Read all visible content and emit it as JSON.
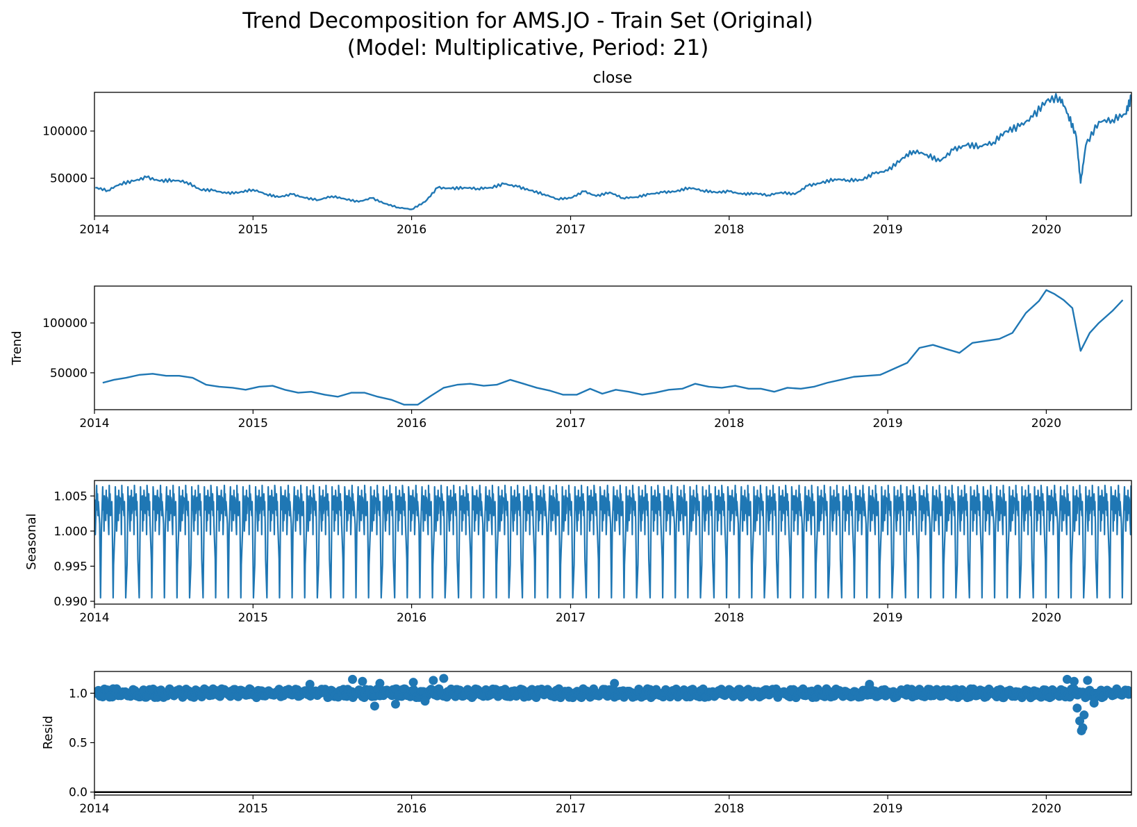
{
  "title_line1": "Trend Decomposition for AMS.JO - Train Set (Original)",
  "title_line2": "(Model: Multiplicative, Period: 21)",
  "colors": {
    "series": "#1f77b4",
    "axis": "#000000",
    "background": "#ffffff"
  },
  "chart_data": [
    {
      "type": "line",
      "panel": "observed",
      "title": "close",
      "ylabel": "",
      "xlim": [
        "2014-01-01",
        "2020-07-15"
      ],
      "ylim": [
        10000,
        141000
      ],
      "x_ticks": [
        "2014",
        "2015",
        "2016",
        "2017",
        "2018",
        "2019",
        "2020"
      ],
      "y_ticks": [
        {
          "value": 50000,
          "label": "50000"
        },
        {
          "value": 100000,
          "label": "100000"
        }
      ],
      "grid": false,
      "x": [
        "2014-01-03",
        "2014-02-01",
        "2014-03-01",
        "2014-04-01",
        "2014-05-01",
        "2014-06-01",
        "2014-07-01",
        "2014-08-01",
        "2014-09-01",
        "2014-10-01",
        "2014-11-01",
        "2014-12-01",
        "2015-01-01",
        "2015-02-01",
        "2015-03-01",
        "2015-04-01",
        "2015-05-01",
        "2015-06-01",
        "2015-07-01",
        "2015-08-01",
        "2015-09-01",
        "2015-10-01",
        "2015-11-01",
        "2015-12-01",
        "2016-01-01",
        "2016-02-01",
        "2016-03-01",
        "2016-04-01",
        "2016-05-01",
        "2016-06-01",
        "2016-07-01",
        "2016-08-01",
        "2016-09-01",
        "2016-10-01",
        "2016-11-01",
        "2016-12-01",
        "2017-01-01",
        "2017-02-01",
        "2017-03-01",
        "2017-04-01",
        "2017-05-01",
        "2017-06-01",
        "2017-07-01",
        "2017-08-01",
        "2017-09-01",
        "2017-10-01",
        "2017-11-01",
        "2017-12-01",
        "2018-01-01",
        "2018-02-01",
        "2018-03-01",
        "2018-04-01",
        "2018-05-01",
        "2018-06-01",
        "2018-07-01",
        "2018-08-01",
        "2018-09-01",
        "2018-10-01",
        "2018-11-01",
        "2018-12-01",
        "2019-01-01",
        "2019-02-01",
        "2019-03-01",
        "2019-04-01",
        "2019-05-01",
        "2019-06-01",
        "2019-07-01",
        "2019-08-01",
        "2019-09-01",
        "2019-10-01",
        "2019-11-01",
        "2019-12-01",
        "2020-01-01",
        "2020-02-01",
        "2020-02-20",
        "2020-03-10",
        "2020-03-20",
        "2020-04-01",
        "2020-05-01",
        "2020-06-01",
        "2020-07-01",
        "2020-07-15"
      ],
      "y": [
        40000,
        37000,
        44000,
        47000,
        51000,
        47000,
        48000,
        46000,
        38000,
        37000,
        34000,
        35000,
        38000,
        33000,
        30000,
        33000,
        29000,
        27000,
        31000,
        28000,
        25000,
        29000,
        23000,
        19000,
        17000,
        25000,
        40000,
        39000,
        40000,
        39000,
        40000,
        44000,
        41000,
        37000,
        33000,
        28000,
        29000,
        36000,
        31000,
        35000,
        29000,
        30000,
        33000,
        35000,
        36000,
        40000,
        37000,
        35000,
        36000,
        33000,
        34000,
        32000,
        35000,
        33000,
        42000,
        45000,
        49000,
        48000,
        48000,
        55000,
        58000,
        70000,
        79000,
        75000,
        68000,
        80000,
        85000,
        84000,
        88000,
        100000,
        105000,
        115000,
        132000,
        136000,
        118000,
        94000,
        45000,
        85000,
        110000,
        112000,
        118000,
        136000
      ]
    },
    {
      "type": "line",
      "panel": "trend",
      "title": "",
      "ylabel": "Trend",
      "xlim": [
        "2014-01-01",
        "2020-07-15"
      ],
      "ylim": [
        13000,
        137000
      ],
      "x_ticks": [
        "2014",
        "2015",
        "2016",
        "2017",
        "2018",
        "2019",
        "2020"
      ],
      "y_ticks": [
        {
          "value": 50000,
          "label": "50000"
        },
        {
          "value": 100000,
          "label": "100000"
        }
      ],
      "grid": false,
      "x": [
        "2014-01-20",
        "2014-02-15",
        "2014-03-15",
        "2014-04-15",
        "2014-05-15",
        "2014-06-15",
        "2014-07-15",
        "2014-08-15",
        "2014-09-15",
        "2014-10-15",
        "2014-11-15",
        "2014-12-15",
        "2015-01-15",
        "2015-02-15",
        "2015-03-15",
        "2015-04-15",
        "2015-05-15",
        "2015-06-15",
        "2015-07-15",
        "2015-08-15",
        "2015-09-15",
        "2015-10-15",
        "2015-11-15",
        "2015-12-15",
        "2016-01-15",
        "2016-02-15",
        "2016-03-15",
        "2016-04-15",
        "2016-05-15",
        "2016-06-15",
        "2016-07-15",
        "2016-08-15",
        "2016-09-15",
        "2016-10-15",
        "2016-11-15",
        "2016-12-15",
        "2017-01-15",
        "2017-02-15",
        "2017-03-15",
        "2017-04-15",
        "2017-05-15",
        "2017-06-15",
        "2017-07-15",
        "2017-08-15",
        "2017-09-15",
        "2017-10-15",
        "2017-11-15",
        "2017-12-15",
        "2018-01-15",
        "2018-02-15",
        "2018-03-15",
        "2018-04-15",
        "2018-05-15",
        "2018-06-15",
        "2018-07-15",
        "2018-08-15",
        "2018-09-15",
        "2018-10-15",
        "2018-11-15",
        "2018-12-15",
        "2019-01-15",
        "2019-02-15",
        "2019-03-15",
        "2019-04-15",
        "2019-05-15",
        "2019-06-15",
        "2019-07-15",
        "2019-08-15",
        "2019-09-15",
        "2019-10-15",
        "2019-11-15",
        "2019-12-15",
        "2020-01-01",
        "2020-01-20",
        "2020-02-10",
        "2020-03-01",
        "2020-03-20",
        "2020-04-10",
        "2020-05-01",
        "2020-06-01",
        "2020-06-25"
      ],
      "y": [
        40000,
        43000,
        45000,
        48000,
        49000,
        47000,
        47000,
        45000,
        38000,
        36000,
        35000,
        33000,
        36000,
        37000,
        33000,
        30000,
        31000,
        28000,
        26000,
        30000,
        30000,
        26000,
        23000,
        18000,
        18000,
        27000,
        35000,
        38000,
        39000,
        37000,
        38000,
        43000,
        39000,
        35000,
        32000,
        28000,
        28000,
        34000,
        29000,
        33000,
        31000,
        28000,
        30000,
        33000,
        34000,
        39000,
        36000,
        35000,
        37000,
        34000,
        34000,
        31000,
        35000,
        34000,
        36000,
        40000,
        43000,
        46000,
        47000,
        48000,
        54000,
        60000,
        75000,
        78000,
        74000,
        70000,
        80000,
        82000,
        84000,
        90000,
        110000,
        122000,
        133000,
        129000,
        123000,
        115000,
        72000,
        90000,
        100000,
        112000,
        123000
      ]
    },
    {
      "type": "line",
      "panel": "seasonal",
      "title": "",
      "ylabel": "Seasonal",
      "xlim": [
        "2014-01-01",
        "2020-07-15"
      ],
      "ylim": [
        0.9896,
        1.0072
      ],
      "x_ticks": [
        "2014",
        "2015",
        "2016",
        "2017",
        "2018",
        "2019",
        "2020"
      ],
      "y_ticks": [
        {
          "value": 0.99,
          "label": "0.990"
        },
        {
          "value": 0.995,
          "label": "0.995"
        },
        {
          "value": 1.0,
          "label": "1.000"
        },
        {
          "value": 1.005,
          "label": "1.005"
        }
      ],
      "grid": false,
      "period": 21,
      "start": "2014-01-02",
      "end": "2020-07-14",
      "pattern": [
        1.0045,
        0.9995,
        1.0065,
        1.003,
        1.0053,
        1.0022,
        1.0042,
        1.001,
        0.996,
        0.9905,
        0.9952,
        1.0002,
        1.0063,
        1.003,
        1.005,
        1.0,
        1.005,
        1.0015,
        1.0058,
        1.0025,
        1.0048
      ]
    },
    {
      "type": "scatter",
      "panel": "resid",
      "title": "",
      "ylabel": "Resid",
      "xlim": [
        "2014-01-01",
        "2020-07-15"
      ],
      "ylim": [
        -0.03,
        1.22
      ],
      "x_ticks": [
        "2014",
        "2015",
        "2016",
        "2017",
        "2018",
        "2019",
        "2020"
      ],
      "y_ticks": [
        {
          "value": 0.0,
          "label": "0.0"
        },
        {
          "value": 0.5,
          "label": "0.5"
        },
        {
          "value": 1.0,
          "label": "1.0"
        }
      ],
      "grid": false,
      "baseline": 0.0,
      "start": "2014-01-02",
      "end": "2020-07-14",
      "typical_range": [
        0.95,
        1.05
      ],
      "outliers": [
        {
          "x": "2015-08-18",
          "y": 1.14
        },
        {
          "x": "2015-09-10",
          "y": 1.12
        },
        {
          "x": "2015-10-08",
          "y": 0.87
        },
        {
          "x": "2015-10-20",
          "y": 1.1
        },
        {
          "x": "2015-11-25",
          "y": 0.89
        },
        {
          "x": "2016-01-05",
          "y": 1.11
        },
        {
          "x": "2016-02-20",
          "y": 1.13
        },
        {
          "x": "2016-03-15",
          "y": 1.15
        },
        {
          "x": "2016-02-01",
          "y": 0.92
        },
        {
          "x": "2015-05-12",
          "y": 1.09
        },
        {
          "x": "2017-04-12",
          "y": 1.1
        },
        {
          "x": "2018-11-20",
          "y": 1.09
        },
        {
          "x": "2020-02-18",
          "y": 1.14
        },
        {
          "x": "2020-03-05",
          "y": 1.12
        },
        {
          "x": "2020-03-18",
          "y": 0.72
        },
        {
          "x": "2020-03-22",
          "y": 0.62
        },
        {
          "x": "2020-03-25",
          "y": 0.65
        },
        {
          "x": "2020-03-28",
          "y": 0.78
        },
        {
          "x": "2020-03-12",
          "y": 0.85
        },
        {
          "x": "2020-04-05",
          "y": 1.13
        },
        {
          "x": "2020-04-20",
          "y": 0.9
        }
      ]
    }
  ]
}
